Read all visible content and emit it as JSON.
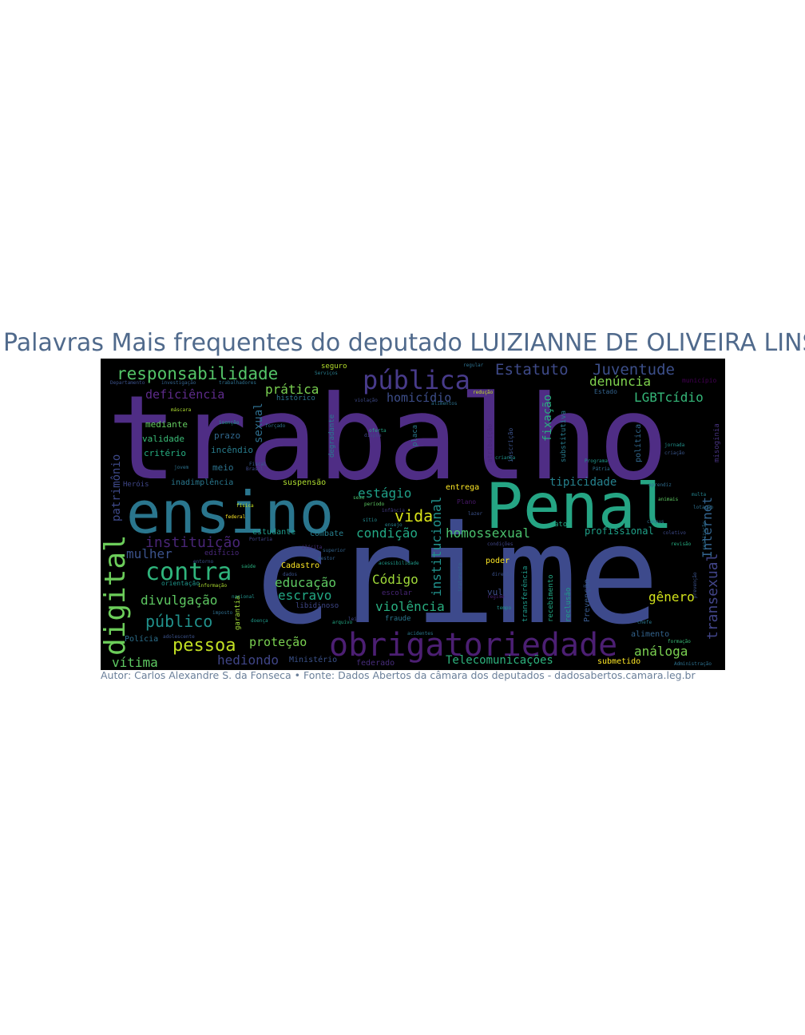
{
  "title": "Palavras Mais frequentes do deputado LUIZIANNE DE OLIVEIRA LINS",
  "footer": "Autor: Carlos Alexandre S. da Fonseca • Fonte: Dados Abertos da câmara dos deputados - dadosabertos.camara.leg.br",
  "colors": {
    "background": "#000000",
    "title": "#506a8c",
    "footer": "#6a7f99"
  },
  "words": [
    {
      "id": "trabalho",
      "text": "trabalho",
      "color": "#4f2d85"
    },
    {
      "id": "crime",
      "text": "crime",
      "color": "#3d4a8c"
    },
    {
      "id": "ensino",
      "text": "ensino",
      "color": "#2a768e"
    },
    {
      "id": "penal",
      "text": "Penal",
      "color": "#25a584"
    },
    {
      "id": "obrigatoriedade",
      "text": "obrigatoriedade",
      "color": "#4c1f73"
    },
    {
      "id": "publica",
      "text": "pública",
      "color": "#483b8b"
    },
    {
      "id": "responsabilidade",
      "text": "responsabilidade",
      "color": "#54c568"
    },
    {
      "id": "estatuto",
      "text": "Estatuto",
      "color": "#3e4a89"
    },
    {
      "id": "juventude",
      "text": "Juventude",
      "color": "#3c4f8a"
    },
    {
      "id": "deficiencia",
      "text": "deficiência",
      "color": "#5d2b8a"
    },
    {
      "id": "pratica",
      "text": "prática",
      "color": "#7ad151"
    },
    {
      "id": "homicidio",
      "text": "homicídio",
      "color": "#3d4e8a"
    },
    {
      "id": "denuncia",
      "text": "denúncia",
      "color": "#7fd34e"
    },
    {
      "id": "lgbtcidio",
      "text": "LGBTcídio",
      "color": "#35b779"
    },
    {
      "id": "contra",
      "text": "contra",
      "color": "#2fb47c"
    },
    {
      "id": "digital",
      "text": "digital",
      "color": "#6ccd5a"
    },
    {
      "id": "instituicao",
      "text": "instituição",
      "color": "#482576"
    },
    {
      "id": "mulher",
      "text": "mulher",
      "color": "#3b528b"
    },
    {
      "id": "divulgacao",
      "text": "divulgação",
      "color": "#5ec962"
    },
    {
      "id": "publico",
      "text": "público",
      "color": "#21918c"
    },
    {
      "id": "pessoa",
      "text": "pessoa",
      "color": "#c2df23"
    },
    {
      "id": "protecao",
      "text": "proteção",
      "color": "#7ad151"
    },
    {
      "id": "vitima",
      "text": "vítima",
      "color": "#5ec962"
    },
    {
      "id": "hediondo",
      "text": "hediondo",
      "color": "#404688"
    },
    {
      "id": "estagio",
      "text": "estágio",
      "color": "#1fa088"
    },
    {
      "id": "vida",
      "text": "vida",
      "color": "#d8e219"
    },
    {
      "id": "condicao",
      "text": "condição",
      "color": "#22a884"
    },
    {
      "id": "homossexual",
      "text": "homossexual",
      "color": "#4ac16d"
    },
    {
      "id": "codigo",
      "text": "Código",
      "color": "#a0da39"
    },
    {
      "id": "educacao",
      "text": "educação",
      "color": "#5ec962"
    },
    {
      "id": "escravo",
      "text": "escravo",
      "color": "#22a884"
    },
    {
      "id": "violencia",
      "text": "violência",
      "color": "#28ae80"
    },
    {
      "id": "tipicidade",
      "text": "tipicidade",
      "color": "#26828e"
    },
    {
      "id": "internet",
      "text": "Internet",
      "color": "#33638d"
    },
    {
      "id": "transexual",
      "text": "transexual",
      "color": "#414487"
    },
    {
      "id": "genero",
      "text": "gênero",
      "color": "#d2e21b"
    },
    {
      "id": "analoga",
      "text": "análoga",
      "color": "#7ad151"
    },
    {
      "id": "telecomunicacoes",
      "text": "Telecomunicações",
      "color": "#2db27d"
    },
    {
      "id": "institucional",
      "text": "institucional",
      "color": "#21918c"
    },
    {
      "id": "sexual",
      "text": "sexual",
      "color": "#2e6e8e"
    },
    {
      "id": "patrimonio",
      "text": "patrimônio",
      "color": "#3e4989"
    },
    {
      "id": "fixacao",
      "text": "fixação",
      "color": "#29af7f"
    },
    {
      "id": "profissional",
      "text": "profissional",
      "color": "#1fa088"
    },
    {
      "id": "mediante",
      "text": "mediante",
      "color": "#63cb5f"
    },
    {
      "id": "validade",
      "text": "validade",
      "color": "#3aba76"
    },
    {
      "id": "criterio",
      "text": "critério",
      "color": "#26ad81"
    },
    {
      "id": "prazo",
      "text": "prazo",
      "color": "#31688e"
    },
    {
      "id": "incendio",
      "text": "incêndio",
      "color": "#287d8e"
    },
    {
      "id": "meio",
      "text": "meio",
      "color": "#2c738e"
    },
    {
      "id": "herois",
      "text": "Heróis",
      "color": "#3f4788"
    },
    {
      "id": "inadimplencia",
      "text": "inadimplência",
      "color": "#2a788e"
    },
    {
      "id": "suspensao",
      "text": "suspensão",
      "color": "#addc30"
    },
    {
      "id": "entrega",
      "text": "entrega",
      "color": "#fde725"
    },
    {
      "id": "estudante",
      "text": "estudante",
      "color": "#1f9a8a"
    },
    {
      "id": "combate",
      "text": "combate",
      "color": "#277f8e"
    },
    {
      "id": "cadastro",
      "text": "Cadastro",
      "color": "#fde725"
    },
    {
      "id": "escolar",
      "text": "escolar",
      "color": "#482677"
    },
    {
      "id": "policia",
      "text": "Polícia",
      "color": "#2d708e"
    },
    {
      "id": "ministerio",
      "text": "Ministério",
      "color": "#3b528b"
    },
    {
      "id": "federado",
      "text": "federado",
      "color": "#472d7b"
    },
    {
      "id": "submetido",
      "text": "submetido",
      "color": "#fde725"
    },
    {
      "id": "alimento",
      "text": "alimento",
      "color": "#33638d"
    },
    {
      "id": "vulto",
      "text": "vulto",
      "color": "#3d4e8a"
    },
    {
      "id": "poder",
      "text": "poder",
      "color": "#fde725"
    },
    {
      "id": "seguro",
      "text": "seguro",
      "color": "#b5de2b"
    },
    {
      "id": "historico",
      "text": "histórico",
      "color": "#2c738e"
    },
    {
      "id": "degradante",
      "text": "degradante",
      "color": "#29798e"
    },
    {
      "id": "garantia",
      "text": "garantia",
      "color": "#a0da39"
    },
    {
      "id": "libidinoso",
      "text": "libidinoso",
      "color": "#3f4788"
    },
    {
      "id": "fraude",
      "text": "fraude",
      "color": "#2a768e"
    },
    {
      "id": "edificio",
      "text": "edifício",
      "color": "#482878"
    },
    {
      "id": "orientacao",
      "text": "orientação",
      "color": "#1f968b"
    },
    {
      "id": "reclusao",
      "text": "reclusão",
      "color": "#1f9e89"
    },
    {
      "id": "prevencao",
      "text": "Prevenção",
      "color": "#38588c"
    },
    {
      "id": "recebimento",
      "text": "recebimento",
      "color": "#22a884"
    },
    {
      "id": "transferencia",
      "text": "transferência",
      "color": "#1f9a8a"
    },
    {
      "id": "politica",
      "text": "política",
      "color": "#31688e"
    },
    {
      "id": "misoginia",
      "text": "misoginia",
      "color": "#46327e"
    },
    {
      "id": "municipio",
      "text": "município",
      "color": "#440154"
    },
    {
      "id": "substitutiva",
      "text": "substitutiva",
      "color": "#287c8e"
    },
    {
      "id": "inscricao",
      "text": "inscrição",
      "color": "#3b528b"
    },
    {
      "id": "atribuicao",
      "text": "atribuição",
      "color": "#482979"
    },
    {
      "id": "estado",
      "text": "Estado",
      "color": "#33638d"
    },
    {
      "id": "plano",
      "text": "Plano",
      "color": "#48186a"
    },
    {
      "id": "ato",
      "text": "ato",
      "color": "#22a884"
    },
    {
      "id": "placa",
      "text": "placa",
      "color": "#2a788e"
    },
    {
      "id": "departamento",
      "text": "Departamento",
      "color": "#3b528b"
    },
    {
      "id": "trabalhadores",
      "text": "trabalhadores",
      "color": "#2d708e"
    },
    {
      "id": "regular",
      "text": "regular",
      "color": "#2d708e"
    },
    {
      "id": "jornada",
      "text": "jornada",
      "color": "#21918c"
    },
    {
      "id": "criacao",
      "text": "criação",
      "color": "#39568c"
    },
    {
      "id": "programa",
      "text": "Programa",
      "color": "#1f968b"
    },
    {
      "id": "patria",
      "text": "Pátria",
      "color": "#2d708e"
    },
    {
      "id": "brasil",
      "text": "Brasil",
      "color": "#3e4989"
    },
    {
      "id": "portaria",
      "text": "Portaria",
      "color": "#404688"
    },
    {
      "id": "crianca",
      "text": "criança",
      "color": "#20928c"
    },
    {
      "id": "ilicita",
      "text": "ilícita",
      "color": "#472f7d"
    },
    {
      "id": "entorno",
      "text": "entorno",
      "color": "#3b528b"
    },
    {
      "id": "jovem",
      "text": "jovem",
      "color": "#2c728e"
    },
    {
      "id": "fiscal",
      "text": "Fiscal",
      "color": "#365c8d"
    },
    {
      "id": "fisica",
      "text": "física",
      "color": "#c8e020"
    },
    {
      "id": "federal",
      "text": "federal",
      "color": "#fde725"
    },
    {
      "id": "sexo",
      "text": "sexo",
      "color": "#4ec36b"
    },
    {
      "id": "lazer",
      "text": "lazer",
      "color": "#3b528b"
    },
    {
      "id": "regime",
      "text": "regime",
      "color": "#482173"
    },
    {
      "id": "oferta",
      "text": "oferta",
      "color": "#21a685"
    },
    {
      "id": "ensejo",
      "text": "ensejo",
      "color": "#26828e"
    },
    {
      "id": "aprendiz",
      "text": "aprendiz",
      "color": "#2f6c8e"
    },
    {
      "id": "direito",
      "text": "direito",
      "color": "#3b528b"
    },
    {
      "id": "tempo",
      "text": "tempo",
      "color": "#20928c"
    },
    {
      "id": "chefe",
      "text": "chefe",
      "color": "#2a788e"
    },
    {
      "id": "formacao",
      "text": "formação",
      "color": "#3aba76"
    },
    {
      "id": "multa",
      "text": "multa",
      "color": "#25848e"
    },
    {
      "id": "revisao",
      "text": "revisão",
      "color": "#26ad81"
    },
    {
      "id": "animais",
      "text": "animais",
      "color": "#5ec962"
    },
    {
      "id": "alimentos",
      "text": "alimentos",
      "color": "#2c728e"
    },
    {
      "id": "cadastro2",
      "text": "dados",
      "color": "#3b528b"
    },
    {
      "id": "acessibilidade",
      "text": "acessibilidade",
      "color": "#1f9a8a"
    },
    {
      "id": "condicoes",
      "text": "condições",
      "color": "#404688"
    },
    {
      "id": "administracao",
      "text": "Administração",
      "color": "#2d708e"
    },
    {
      "id": "reducao",
      "text": "redução",
      "color": "#c2df23"
    },
    {
      "id": "violacao",
      "text": "violação",
      "color": "#3e4a89"
    },
    {
      "id": "servicos",
      "text": "Serviços",
      "color": "#287d8e"
    },
    {
      "id": "investigacao",
      "text": "investigação",
      "color": "#33638d"
    },
    {
      "id": "mascara",
      "text": "máscara",
      "color": "#addc30"
    },
    {
      "id": "isencao",
      "text": "isenção",
      "color": "#1f968b"
    },
    {
      "id": "forcado",
      "text": "forçado",
      "color": "#2e6f8e"
    },
    {
      "id": "dispoe",
      "text": "dispõe",
      "color": "#404688"
    },
    {
      "id": "sitio",
      "text": "sítio",
      "color": "#23898e"
    },
    {
      "id": "periodo",
      "text": "período",
      "color": "#5ec962"
    },
    {
      "id": "infancia",
      "text": "infância",
      "color": "#433d84"
    },
    {
      "id": "superior",
      "text": "superior",
      "color": "#33638d"
    },
    {
      "id": "gestor",
      "text": "gestor",
      "color": "#34608d"
    },
    {
      "id": "informacao",
      "text": "informação",
      "color": "#addc30"
    },
    {
      "id": "saude",
      "text": "saúde",
      "color": "#29af7f"
    },
    {
      "id": "lei",
      "text": "lei",
      "color": "#404688"
    },
    {
      "id": "imposto",
      "text": "imposto",
      "color": "#2e6e8e"
    },
    {
      "id": "nacional",
      "text": "nacional",
      "color": "#21918c"
    },
    {
      "id": "adolescente",
      "text": "adolescente",
      "color": "#3b528b"
    },
    {
      "id": "doenca",
      "text": "doença",
      "color": "#1f9a8a"
    },
    {
      "id": "campus",
      "text": "campus",
      "color": "#2c738e"
    },
    {
      "id": "coletivo",
      "text": "coletivo",
      "color": "#3e4a89"
    },
    {
      "id": "lotacao",
      "text": "lotação",
      "color": "#2e6f8e"
    },
    {
      "id": "arquivo",
      "text": "arquivo",
      "color": "#22a884"
    },
    {
      "id": "acidentes",
      "text": "acidentes",
      "color": "#2a788e"
    },
    {
      "id": "realizacao",
      "text": "realização",
      "color": "#2d708e"
    },
    {
      "id": "prevencao2",
      "text": "prevenção",
      "color": "#3b528b"
    },
    {
      "id": "tratamento",
      "text": "tratamento",
      "color": "#33638d"
    }
  ]
}
